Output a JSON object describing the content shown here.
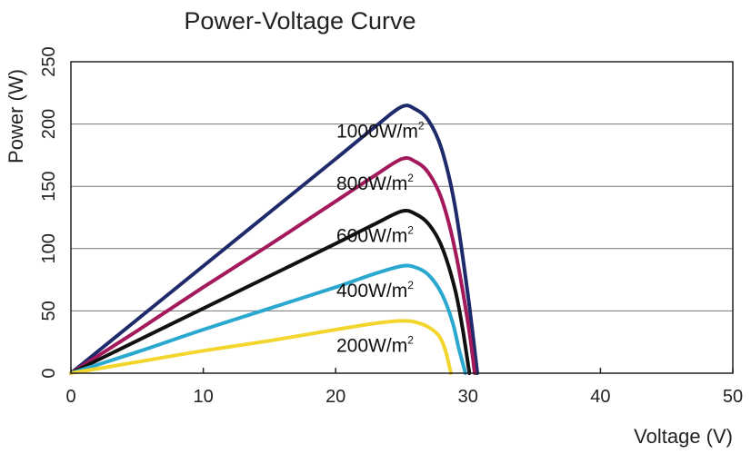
{
  "chart_data": {
    "type": "line",
    "title": "Power-Voltage Curve",
    "xlabel": "Voltage (V)",
    "ylabel": "Power (W)",
    "xlim": [
      0,
      50
    ],
    "ylim": [
      0,
      250
    ],
    "xticks": [
      0,
      10,
      20,
      30,
      40,
      50
    ],
    "yticks": [
      0,
      50,
      100,
      150,
      200,
      250
    ],
    "grid": "horizontal",
    "series": [
      {
        "name": "1000W/m²",
        "label_main": "1000W/m",
        "label_sup": "2",
        "color": "#1f2a6b",
        "points": [
          [
            0,
            0
          ],
          [
            5,
            43
          ],
          [
            10,
            86
          ],
          [
            15,
            129
          ],
          [
            20,
            172
          ],
          [
            23,
            198
          ],
          [
            25,
            214
          ],
          [
            26,
            212
          ],
          [
            27,
            203
          ],
          [
            28,
            180
          ],
          [
            29,
            135
          ],
          [
            30,
            62
          ],
          [
            30.7,
            0
          ]
        ]
      },
      {
        "name": "800W/m²",
        "label_main": "800W/m",
        "label_sup": "2",
        "color": "#a3195b",
        "points": [
          [
            0,
            0
          ],
          [
            5,
            34
          ],
          [
            10,
            69
          ],
          [
            15,
            103
          ],
          [
            20,
            138
          ],
          [
            23,
            159
          ],
          [
            25,
            172
          ],
          [
            26,
            170
          ],
          [
            27,
            161
          ],
          [
            28,
            140
          ],
          [
            29,
            100
          ],
          [
            30,
            40
          ],
          [
            30.5,
            0
          ]
        ]
      },
      {
        "name": "600W/m²",
        "label_main": "600W/m",
        "label_sup": "2",
        "color": "#111111",
        "points": [
          [
            0,
            0
          ],
          [
            5,
            26
          ],
          [
            10,
            52
          ],
          [
            15,
            78
          ],
          [
            20,
            104
          ],
          [
            23,
            120
          ],
          [
            25,
            130
          ],
          [
            26,
            128
          ],
          [
            27,
            120
          ],
          [
            28,
            102
          ],
          [
            29,
            68
          ],
          [
            29.6,
            35
          ],
          [
            30.1,
            0
          ]
        ]
      },
      {
        "name": "400W/m²",
        "label_main": "400W/m",
        "label_sup": "2",
        "color": "#2aa8cf",
        "points": [
          [
            0,
            0
          ],
          [
            5,
            17
          ],
          [
            10,
            35
          ],
          [
            15,
            52
          ],
          [
            20,
            69
          ],
          [
            23,
            80
          ],
          [
            25,
            86
          ],
          [
            26,
            85
          ],
          [
            27,
            79
          ],
          [
            28,
            64
          ],
          [
            28.8,
            42
          ],
          [
            29.3,
            20
          ],
          [
            29.8,
            0
          ]
        ]
      },
      {
        "name": "200W/m²",
        "label_main": "200W/m",
        "label_sup": "2",
        "color": "#f2d62e",
        "points": [
          [
            0,
            0
          ],
          [
            5,
            9
          ],
          [
            10,
            18
          ],
          [
            15,
            26
          ],
          [
            20,
            35
          ],
          [
            23,
            40
          ],
          [
            25,
            42
          ],
          [
            26,
            41
          ],
          [
            27,
            37
          ],
          [
            27.8,
            30
          ],
          [
            28.3,
            18
          ],
          [
            28.7,
            0
          ]
        ]
      }
    ]
  }
}
